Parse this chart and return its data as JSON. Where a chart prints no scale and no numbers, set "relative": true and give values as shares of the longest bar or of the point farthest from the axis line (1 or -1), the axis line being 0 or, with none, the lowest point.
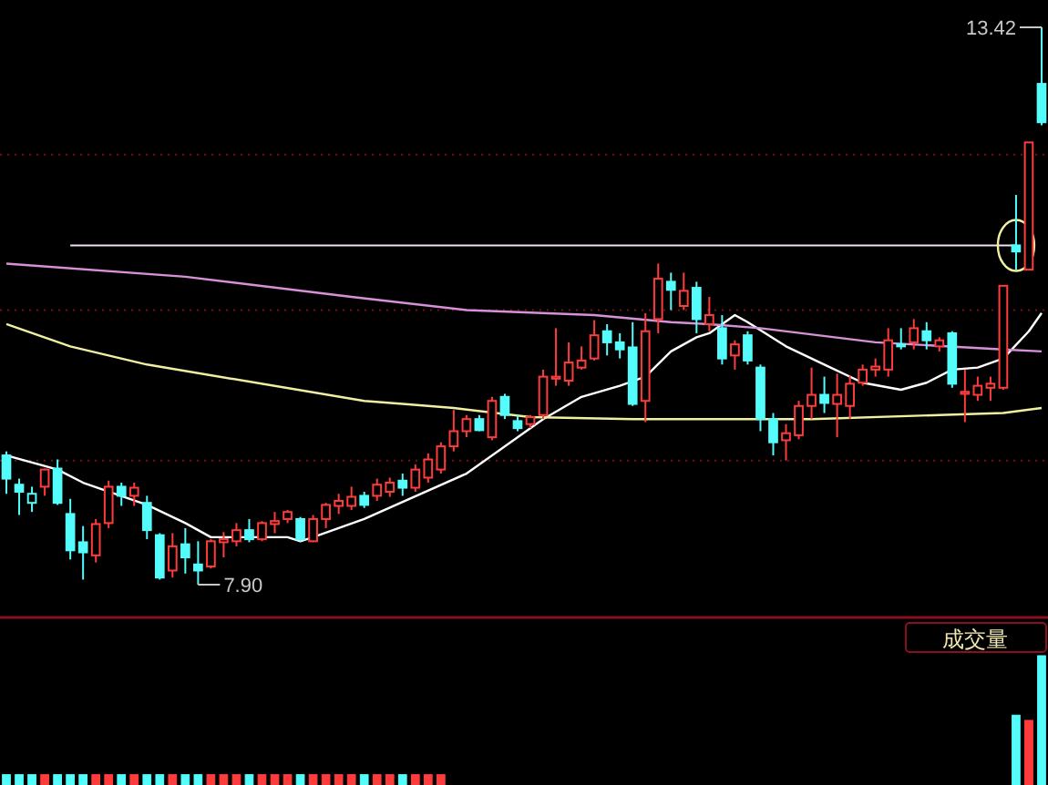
{
  "chart_data": [
    {
      "type": "candlestick",
      "grid": "y",
      "yticks": [
        {
          "value": 9.13,
          "label": null
        },
        {
          "value": 10.62,
          "label": null
        },
        {
          "value": 12.16,
          "label": null
        }
      ],
      "categories": [
        null,
        null,
        null,
        null,
        null,
        null,
        null,
        null,
        null,
        null,
        null,
        null,
        null,
        null,
        null,
        null,
        null,
        null,
        null,
        null,
        null,
        null,
        null,
        null,
        null,
        null,
        null,
        null,
        null,
        null,
        null,
        null,
        null,
        null,
        null,
        null,
        null,
        null,
        null,
        null,
        null,
        null,
        null,
        null,
        null,
        null,
        null,
        null,
        null,
        null,
        null,
        null,
        null,
        null,
        null,
        null,
        null,
        null,
        null,
        null,
        null,
        null,
        null,
        null,
        null,
        null,
        null,
        null,
        null,
        null,
        null,
        null,
        null,
        null,
        null,
        null,
        null,
        null,
        null,
        null,
        null,
        null
      ],
      "ohlc": [
        [
          9.18,
          9.22,
          8.8,
          8.95
        ],
        [
          8.89,
          8.95,
          8.59,
          8.82
        ],
        [
          8.71,
          8.87,
          8.62,
          8.8
        ],
        [
          8.87,
          9.05,
          8.78,
          9.04
        ],
        [
          9.05,
          9.14,
          8.69,
          8.71
        ],
        [
          8.6,
          8.75,
          8.15,
          8.24
        ],
        [
          8.32,
          8.48,
          7.95,
          8.22
        ],
        [
          8.19,
          8.55,
          8.12,
          8.5
        ],
        [
          8.51,
          8.93,
          8.46,
          8.87
        ],
        [
          8.87,
          8.91,
          8.68,
          8.78
        ],
        [
          8.78,
          8.91,
          8.68,
          8.86
        ],
        [
          8.71,
          8.78,
          8.35,
          8.44
        ],
        [
          8.39,
          8.41,
          7.95,
          7.97
        ],
        [
          8.04,
          8.41,
          7.97,
          8.28
        ],
        [
          8.3,
          8.46,
          8.01,
          8.17
        ],
        [
          8.1,
          8.33,
          7.9,
          8.04
        ],
        [
          8.08,
          8.35,
          8.06,
          8.33
        ],
        [
          8.32,
          8.42,
          8.17,
          8.35
        ],
        [
          8.33,
          8.51,
          8.28,
          8.44
        ],
        [
          8.44,
          8.55,
          8.32,
          8.35
        ],
        [
          8.35,
          8.53,
          8.33,
          8.51
        ],
        [
          8.5,
          8.62,
          8.41,
          8.53
        ],
        [
          8.55,
          8.64,
          8.51,
          8.62
        ],
        [
          8.55,
          8.57,
          8.33,
          8.35
        ],
        [
          8.33,
          8.59,
          8.32,
          8.55
        ],
        [
          8.55,
          8.71,
          8.46,
          8.69
        ],
        [
          8.68,
          8.8,
          8.6,
          8.73
        ],
        [
          8.68,
          8.87,
          8.64,
          8.77
        ],
        [
          8.78,
          8.82,
          8.66,
          8.69
        ],
        [
          8.78,
          8.95,
          8.73,
          8.89
        ],
        [
          8.82,
          8.96,
          8.77,
          8.91
        ],
        [
          8.93,
          9.0,
          8.78,
          8.86
        ],
        [
          8.86,
          9.09,
          8.82,
          9.04
        ],
        [
          8.96,
          9.2,
          8.91,
          9.14
        ],
        [
          9.04,
          9.31,
          9.0,
          9.27
        ],
        [
          9.27,
          9.63,
          9.22,
          9.42
        ],
        [
          9.42,
          9.58,
          9.36,
          9.54
        ],
        [
          9.54,
          9.58,
          9.42,
          9.43
        ],
        [
          9.36,
          9.76,
          9.33,
          9.72
        ],
        [
          9.76,
          9.79,
          9.54,
          9.58
        ],
        [
          9.52,
          9.58,
          9.42,
          9.45
        ],
        [
          9.49,
          9.58,
          9.45,
          9.56
        ],
        [
          9.58,
          10.03,
          9.54,
          9.96
        ],
        [
          9.94,
          10.44,
          9.87,
          9.96
        ],
        [
          9.92,
          10.3,
          9.87,
          10.1
        ],
        [
          10.05,
          10.26,
          10.03,
          10.12
        ],
        [
          10.14,
          10.52,
          10.12,
          10.37
        ],
        [
          10.41,
          10.48,
          10.17,
          10.3
        ],
        [
          10.3,
          10.39,
          10.14,
          10.23
        ],
        [
          10.25,
          10.5,
          9.67,
          9.69
        ],
        [
          9.72,
          10.59,
          9.51,
          10.41
        ],
        [
          10.53,
          11.08,
          10.39,
          10.93
        ],
        [
          10.9,
          10.99,
          10.62,
          10.82
        ],
        [
          10.66,
          10.99,
          10.62,
          10.81
        ],
        [
          10.84,
          10.9,
          10.39,
          10.53
        ],
        [
          10.48,
          10.75,
          10.41,
          10.57
        ],
        [
          10.44,
          10.57,
          10.08,
          10.14
        ],
        [
          10.17,
          10.32,
          10.03,
          10.28
        ],
        [
          10.37,
          10.41,
          10.08,
          10.12
        ],
        [
          10.05,
          10.08,
          9.42,
          9.54
        ],
        [
          9.54,
          9.6,
          9.18,
          9.31
        ],
        [
          9.33,
          9.49,
          9.13,
          9.4
        ],
        [
          9.38,
          9.72,
          9.34,
          9.67
        ],
        [
          9.67,
          10.05,
          9.54,
          9.78
        ],
        [
          9.78,
          9.96,
          9.6,
          9.7
        ],
        [
          9.69,
          9.99,
          9.36,
          9.78
        ],
        [
          9.67,
          9.97,
          9.54,
          9.89
        ],
        [
          9.9,
          10.08,
          9.87,
          10.03
        ],
        [
          10.03,
          10.14,
          9.96,
          10.06
        ],
        [
          10.03,
          10.44,
          9.96,
          10.32
        ],
        [
          10.28,
          10.44,
          10.23,
          10.26
        ],
        [
          10.3,
          10.53,
          10.23,
          10.44
        ],
        [
          10.41,
          10.5,
          10.23,
          10.32
        ],
        [
          10.26,
          10.35,
          10.21,
          10.32
        ],
        [
          10.39,
          10.41,
          9.85,
          9.89
        ],
        [
          9.79,
          10.03,
          9.51,
          9.81
        ],
        [
          9.78,
          9.96,
          9.72,
          9.87
        ],
        [
          9.85,
          9.96,
          9.72,
          9.89
        ],
        [
          9.85,
          10.86,
          9.83,
          10.86
        ],
        [
          11.26,
          11.76,
          11.02,
          11.2
        ],
        [
          11.02,
          12.28,
          11.02,
          12.28
        ],
        [
          12.86,
          13.42,
          12.45,
          12.48
        ]
      ],
      "colors": [
        "#54fcfc",
        "#54fcfc",
        "#54fcfc",
        "#ff3c3c",
        "#54fcfc",
        "#54fcfc",
        "#54fcfc",
        "#ff3c3c",
        "#ff3c3c",
        "#54fcfc",
        "#ff3c3c",
        "#54fcfc",
        "#54fcfc",
        "#ff3c3c",
        "#54fcfc",
        "#54fcfc",
        "#ff3c3c",
        "#ff3c3c",
        "#ff3c3c",
        "#54fcfc",
        "#ff3c3c",
        "#ff3c3c",
        "#ff3c3c",
        "#54fcfc",
        "#ff3c3c",
        "#ff3c3c",
        "#ff3c3c",
        "#ff3c3c",
        "#54fcfc",
        "#ff3c3c",
        "#ff3c3c",
        "#54fcfc",
        "#ff3c3c",
        "#ff3c3c",
        "#ff3c3c",
        "#ff3c3c",
        "#ff3c3c",
        "#54fcfc",
        "#ff3c3c",
        "#54fcfc",
        "#54fcfc",
        "#ff3c3c",
        "#ff3c3c",
        "#ff3c3c",
        "#ff3c3c",
        "#ff3c3c",
        "#ff3c3c",
        "#54fcfc",
        "#54fcfc",
        "#54fcfc",
        "#ff3c3c",
        "#ff3c3c",
        "#54fcfc",
        "#ff3c3c",
        "#54fcfc",
        "#ff3c3c",
        "#54fcfc",
        "#ff3c3c",
        "#54fcfc",
        "#54fcfc",
        "#54fcfc",
        "#ff3c3c",
        "#ff3c3c",
        "#ff3c3c",
        "#54fcfc",
        "#ff3c3c",
        "#ff3c3c",
        "#ff3c3c",
        "#ff3c3c",
        "#ff3c3c",
        "#54fcfc",
        "#ff3c3c",
        "#54fcfc",
        "#ff3c3c",
        "#54fcfc",
        "#ff3c3c",
        "#ff3c3c",
        "#ff3c3c",
        "#ff3c3c",
        "#54fcfc",
        "#ff3c3c",
        "#54fcfc"
      ],
      "series": [
        {
          "type": "line",
          "color": "#ffffff",
          "values": [
            9.18,
            null,
            null,
            null,
            9.04,
            null,
            8.91,
            null,
            null,
            null,
            null,
            8.69,
            null,
            null,
            8.51,
            null,
            8.37,
            null,
            null,
            8.37,
            null,
            null,
            8.37,
            8.33,
            8.37,
            null,
            null,
            null,
            8.55,
            null,
            null,
            null,
            null,
            null,
            null,
            null,
            9.0,
            null,
            null,
            null,
            null,
            null,
            9.54,
            null,
            null,
            9.76,
            null,
            null,
            9.87,
            null,
            9.96,
            null,
            10.21,
            null,
            10.35,
            10.39,
            null,
            10.57,
            10.5,
            null,
            null,
            10.26,
            null,
            null,
            10.08,
            null,
            null,
            9.9,
            null,
            null,
            9.83,
            null,
            9.9,
            null,
            10.03,
            null,
            10.05,
            null,
            10.14,
            null,
            10.41,
            10.59
          ]
        },
        {
          "type": "line",
          "color": "#f0f0a0",
          "values": [
            10.48,
            null,
            null,
            null,
            null,
            10.26,
            null,
            null,
            null,
            null,
            null,
            10.08,
            null,
            null,
            null,
            null,
            null,
            null,
            null,
            null,
            null,
            null,
            null,
            null,
            null,
            null,
            null,
            null,
            9.72,
            null,
            null,
            9.69,
            null,
            null,
            null,
            9.65,
            null,
            null,
            null,
            null,
            null,
            9.56,
            null,
            null,
            null,
            null,
            null,
            null,
            null,
            9.54,
            null,
            null,
            null,
            null,
            null,
            9.54,
            null,
            null,
            null,
            null,
            null,
            null,
            null,
            9.54,
            null,
            null,
            null,
            null,
            null,
            null,
            null,
            null,
            null,
            9.58,
            null,
            null,
            null,
            null,
            9.6,
            null,
            null,
            9.65
          ]
        },
        {
          "type": "line",
          "color": "#d890d8",
          "values": [
            11.08,
            null,
            null,
            null,
            null,
            null,
            null,
            null,
            null,
            null,
            null,
            null,
            null,
            null,
            10.95,
            null,
            null,
            null,
            null,
            null,
            null,
            null,
            null,
            null,
            null,
            null,
            null,
            10.75,
            null,
            null,
            null,
            null,
            null,
            null,
            null,
            null,
            10.62,
            null,
            null,
            null,
            null,
            null,
            null,
            null,
            null,
            null,
            10.57,
            null,
            null,
            null,
            null,
            null,
            10.5,
            null,
            null,
            10.48,
            null,
            null,
            null,
            10.44,
            null,
            null,
            null,
            null,
            null,
            null,
            null,
            null,
            10.3,
            null,
            null,
            null,
            null,
            null,
            null,
            null,
            null,
            null,
            10.23,
            null,
            null,
            10.21
          ]
        }
      ],
      "ref_lines": [
        {
          "axis": "y",
          "value": 11.26,
          "color": "#f0e0f0"
        }
      ],
      "annotations": [
        "13.42",
        "7.90"
      ]
    },
    {
      "type": "bar",
      "relative": true,
      "title": "成交量",
      "categories": [
        null,
        null,
        null,
        null,
        null,
        null,
        null,
        null,
        null,
        null,
        null,
        null,
        null,
        null,
        null,
        null,
        null,
        null,
        null,
        null,
        null,
        null,
        null,
        null,
        null,
        null,
        null,
        null,
        null,
        null,
        null,
        null,
        null,
        null,
        null,
        null,
        null,
        null,
        null,
        null,
        null,
        null,
        null,
        null,
        null,
        null,
        null,
        null,
        null,
        null,
        null,
        null,
        null,
        null,
        null,
        null,
        null,
        null,
        null,
        null,
        null,
        null,
        null,
        null,
        null,
        null,
        null,
        null,
        null,
        null,
        null,
        null,
        null,
        null,
        null,
        null,
        null,
        null,
        null,
        null,
        null,
        null
      ],
      "values": [
        0.08,
        0.08,
        0.08,
        0.08,
        0.08,
        0.08,
        0.08,
        0.08,
        0.08,
        0.08,
        0.08,
        0.08,
        0.08,
        0.08,
        0.08,
        0.08,
        0.08,
        0.08,
        0.08,
        0.08,
        0.08,
        0.08,
        0.08,
        0.08,
        0.08,
        0.08,
        0.08,
        0.08,
        0.08,
        0.08,
        0.08,
        0.08,
        0.08,
        0.08,
        0.08,
        null,
        null,
        null,
        null,
        null,
        null,
        null,
        null,
        null,
        null,
        null,
        null,
        null,
        null,
        null,
        null,
        null,
        null,
        null,
        null,
        null,
        null,
        null,
        null,
        null,
        null,
        null,
        null,
        null,
        null,
        null,
        null,
        null,
        null,
        null,
        null,
        null,
        null,
        null,
        null,
        null,
        null,
        null,
        null,
        0.54,
        0.5,
        1
      ],
      "colors": [
        "#54fcfc",
        "#54fcfc",
        "#54fcfc",
        "#ff3c3c",
        "#54fcfc",
        "#54fcfc",
        "#54fcfc",
        "#ff3c3c",
        "#ff3c3c",
        "#54fcfc",
        "#ff3c3c",
        "#54fcfc",
        "#54fcfc",
        "#ff3c3c",
        "#54fcfc",
        "#54fcfc",
        "#ff3c3c",
        "#ff3c3c",
        "#ff3c3c",
        "#54fcfc",
        "#ff3c3c",
        "#ff3c3c",
        "#ff3c3c",
        "#54fcfc",
        "#ff3c3c",
        "#ff3c3c",
        "#ff3c3c",
        "#ff3c3c",
        "#54fcfc",
        "#ff3c3c",
        "#ff3c3c",
        "#54fcfc",
        "#ff3c3c",
        "#ff3c3c",
        "#ff3c3c",
        null,
        null,
        null,
        null,
        null,
        null,
        null,
        null,
        null,
        null,
        null,
        null,
        null,
        null,
        null,
        null,
        null,
        null,
        null,
        null,
        null,
        null,
        null,
        null,
        null,
        null,
        null,
        null,
        null,
        null,
        null,
        null,
        null,
        null,
        null,
        null,
        null,
        null,
        null,
        null,
        null,
        null,
        null,
        null,
        "#54fcfc",
        "#ff3c3c",
        "#54fcfc"
      ]
    }
  ]
}
